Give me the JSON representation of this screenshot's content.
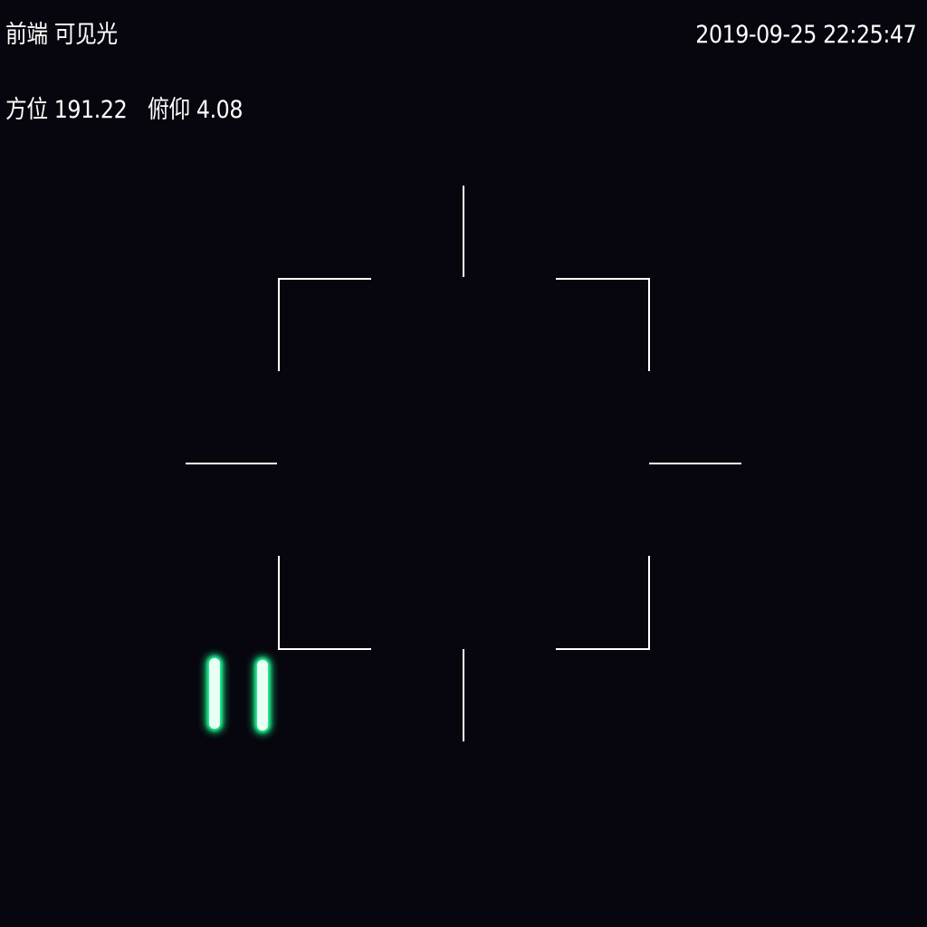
{
  "osd": {
    "camera_label": "前端  可见光",
    "timestamp": "2019-09-25 22:25:47",
    "azimuth": "方位 191.22",
    "pitch": "俯仰 4.08"
  },
  "colors": {
    "background": "#07050d",
    "text": "#ffffff",
    "reticle": "#ffffff",
    "light_glow": "#2dffa0"
  },
  "icons": {
    "reticle": "crosshair-reticle-icon"
  }
}
